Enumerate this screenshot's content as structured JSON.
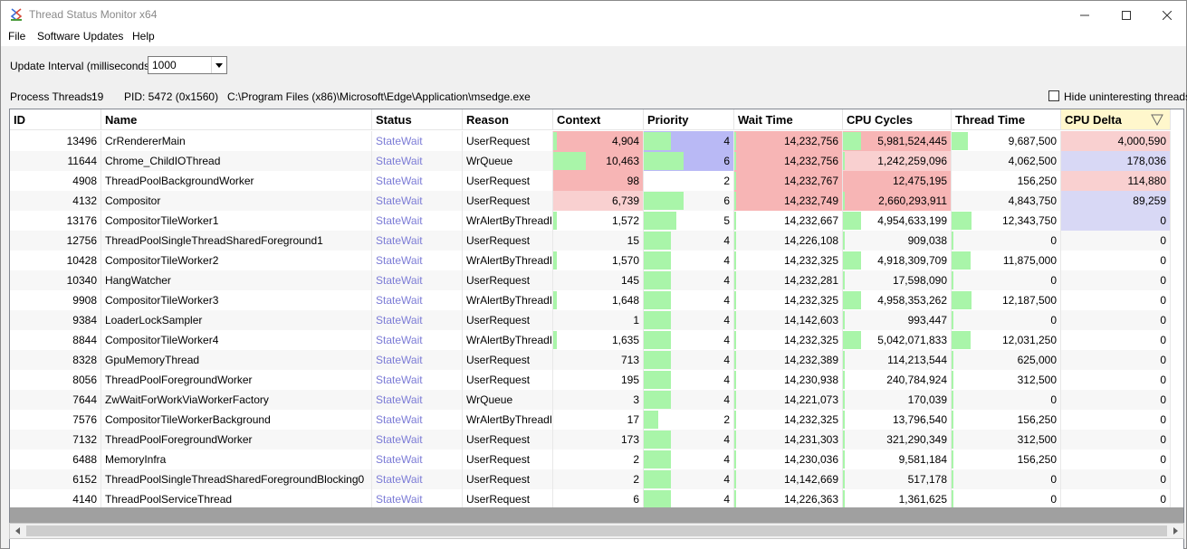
{
  "window": {
    "title": "Thread Status Monitor x64"
  },
  "menu": [
    "File",
    "Software Updates",
    "Help"
  ],
  "controls": {
    "interval_label": "Update Interval (milliseconds):",
    "interval_value": "1000",
    "hide_label": "Hide uninteresting threads",
    "hide_checked": false
  },
  "info": {
    "threads_label": "Process Threads:",
    "threads_value": "19",
    "pid": "PID: 5472 (0x1560)",
    "path": "C:\\Program Files (x86)\\Microsoft\\Edge\\Application\\msedge.exe"
  },
  "colors": {
    "green": "#a9f5a9",
    "red": "#f7b5b5",
    "red_light": "#f9d0d0",
    "blue": "#b9b9f5",
    "blue_light": "#d8d8f5",
    "link": "#7b7bd6"
  },
  "columns": [
    "ID",
    "Name",
    "Status",
    "Reason",
    "Context",
    "Priority",
    "Wait Time",
    "CPU Cycles",
    "Thread Time",
    "CPU Delta"
  ],
  "sorted_column": "CPU Delta",
  "rows": [
    {
      "id": "13496",
      "name": "CrRendererMain",
      "status": "StateWait",
      "reason": "UserRequest",
      "context": "4,904",
      "priority": "4",
      "wait": "14,232,756",
      "cycles": "5,981,524,445",
      "thread_time": "9,687,500",
      "delta": "4,000,590",
      "context_frac": 0.04,
      "priority_frac": 0.3,
      "wait_frac": 0.02,
      "cycles_frac": 0.17,
      "thread_frac": 0.15,
      "delta_frac": 0.0,
      "hl_context": "red",
      "hl_priority": "blue",
      "hl_wait": "red",
      "hl_cycles": "red",
      "hl_delta": "red_light"
    },
    {
      "id": "11644",
      "name": "Chrome_ChildIOThread",
      "status": "StateWait",
      "reason": "WrQueue",
      "context": "10,463",
      "priority": "6",
      "wait": "14,232,756",
      "cycles": "1,242,259,096",
      "thread_time": "4,062,500",
      "delta": "178,036",
      "context_frac": 0.36,
      "priority_frac": 0.44,
      "wait_frac": 0.02,
      "cycles_frac": 0.02,
      "thread_frac": 0.0,
      "delta_frac": 0.0,
      "hl_context": "red",
      "hl_priority": "blue",
      "hl_wait": "red",
      "hl_cycles": "red_light",
      "hl_delta": "blue_light"
    },
    {
      "id": "4908",
      "name": "ThreadPoolBackgroundWorker",
      "status": "StateWait",
      "reason": "UserRequest",
      "context": "98",
      "priority": "2",
      "wait": "14,232,767",
      "cycles": "12,475,195",
      "thread_time": "156,250",
      "delta": "114,880",
      "context_frac": 0.0,
      "priority_frac": 0.0,
      "wait_frac": 0.02,
      "cycles_frac": 0.0,
      "thread_frac": 0.0,
      "delta_frac": 0.0,
      "hl_context": "red",
      "hl_priority": "",
      "hl_wait": "red",
      "hl_cycles": "red",
      "hl_delta": "red_light"
    },
    {
      "id": "4132",
      "name": "Compositor",
      "status": "StateWait",
      "reason": "UserRequest",
      "context": "6,739",
      "priority": "6",
      "wait": "14,232,749",
      "cycles": "2,660,293,911",
      "thread_time": "4,843,750",
      "delta": "89,259",
      "context_frac": 0.0,
      "priority_frac": 0.44,
      "wait_frac": 0.02,
      "cycles_frac": 0.02,
      "thread_frac": 0.0,
      "delta_frac": 0.0,
      "hl_context": "red_light",
      "hl_priority": "",
      "hl_wait": "red",
      "hl_cycles": "red",
      "hl_delta": "blue_light"
    },
    {
      "id": "13176",
      "name": "CompositorTileWorker1",
      "status": "StateWait",
      "reason": "WrAlertByThreadId",
      "context": "1,572",
      "priority": "5",
      "wait": "14,232,667",
      "cycles": "4,954,633,199",
      "thread_time": "12,343,750",
      "delta": "0",
      "context_frac": 0.04,
      "priority_frac": 0.36,
      "wait_frac": 0.02,
      "cycles_frac": 0.17,
      "thread_frac": 0.18,
      "delta_frac": 0.0,
      "hl_context": "",
      "hl_priority": "",
      "hl_wait": "",
      "hl_cycles": "",
      "hl_delta": "blue_light"
    },
    {
      "id": "12756",
      "name": "ThreadPoolSingleThreadSharedForeground1",
      "status": "StateWait",
      "reason": "UserRequest",
      "context": "15",
      "priority": "4",
      "wait": "14,226,108",
      "cycles": "909,038",
      "thread_time": "0",
      "delta": "0",
      "context_frac": 0.0,
      "priority_frac": 0.3,
      "wait_frac": 0.02,
      "cycles_frac": 0.02,
      "thread_frac": 0.02,
      "delta_frac": 0.0,
      "hl_context": "",
      "hl_priority": "",
      "hl_wait": "",
      "hl_cycles": "",
      "hl_delta": ""
    },
    {
      "id": "10428",
      "name": "CompositorTileWorker2",
      "status": "StateWait",
      "reason": "WrAlertByThreadId",
      "context": "1,570",
      "priority": "4",
      "wait": "14,232,325",
      "cycles": "4,918,309,709",
      "thread_time": "11,875,000",
      "delta": "0",
      "context_frac": 0.04,
      "priority_frac": 0.3,
      "wait_frac": 0.02,
      "cycles_frac": 0.17,
      "thread_frac": 0.17,
      "delta_frac": 0.0,
      "hl_context": "",
      "hl_priority": "",
      "hl_wait": "",
      "hl_cycles": "",
      "hl_delta": ""
    },
    {
      "id": "10340",
      "name": "HangWatcher",
      "status": "StateWait",
      "reason": "UserRequest",
      "context": "145",
      "priority": "4",
      "wait": "14,232,281",
      "cycles": "17,598,090",
      "thread_time": "0",
      "delta": "0",
      "context_frac": 0.0,
      "priority_frac": 0.3,
      "wait_frac": 0.02,
      "cycles_frac": 0.02,
      "thread_frac": 0.02,
      "delta_frac": 0.0,
      "hl_context": "",
      "hl_priority": "",
      "hl_wait": "",
      "hl_cycles": "",
      "hl_delta": ""
    },
    {
      "id": "9908",
      "name": "CompositorTileWorker3",
      "status": "StateWait",
      "reason": "WrAlertByThreadId",
      "context": "1,648",
      "priority": "4",
      "wait": "14,232,325",
      "cycles": "4,958,353,262",
      "thread_time": "12,187,500",
      "delta": "0",
      "context_frac": 0.04,
      "priority_frac": 0.3,
      "wait_frac": 0.02,
      "cycles_frac": 0.17,
      "thread_frac": 0.18,
      "delta_frac": 0.0,
      "hl_context": "",
      "hl_priority": "",
      "hl_wait": "",
      "hl_cycles": "",
      "hl_delta": ""
    },
    {
      "id": "9384",
      "name": "LoaderLockSampler",
      "status": "StateWait",
      "reason": "UserRequest",
      "context": "1",
      "priority": "4",
      "wait": "14,142,603",
      "cycles": "993,447",
      "thread_time": "0",
      "delta": "0",
      "context_frac": 0.0,
      "priority_frac": 0.3,
      "wait_frac": 0.02,
      "cycles_frac": 0.02,
      "thread_frac": 0.02,
      "delta_frac": 0.0,
      "hl_context": "",
      "hl_priority": "",
      "hl_wait": "",
      "hl_cycles": "",
      "hl_delta": ""
    },
    {
      "id": "8844",
      "name": "CompositorTileWorker4",
      "status": "StateWait",
      "reason": "WrAlertByThreadId",
      "context": "1,635",
      "priority": "4",
      "wait": "14,232,325",
      "cycles": "5,042,071,833",
      "thread_time": "12,031,250",
      "delta": "0",
      "context_frac": 0.04,
      "priority_frac": 0.3,
      "wait_frac": 0.02,
      "cycles_frac": 0.17,
      "thread_frac": 0.17,
      "delta_frac": 0.0,
      "hl_context": "",
      "hl_priority": "",
      "hl_wait": "",
      "hl_cycles": "",
      "hl_delta": ""
    },
    {
      "id": "8328",
      "name": "GpuMemoryThread",
      "status": "StateWait",
      "reason": "UserRequest",
      "context": "713",
      "priority": "4",
      "wait": "14,232,389",
      "cycles": "114,213,544",
      "thread_time": "625,000",
      "delta": "0",
      "context_frac": 0.0,
      "priority_frac": 0.3,
      "wait_frac": 0.02,
      "cycles_frac": 0.02,
      "thread_frac": 0.02,
      "delta_frac": 0.0,
      "hl_context": "",
      "hl_priority": "",
      "hl_wait": "",
      "hl_cycles": "",
      "hl_delta": ""
    },
    {
      "id": "8056",
      "name": "ThreadPoolForegroundWorker",
      "status": "StateWait",
      "reason": "UserRequest",
      "context": "195",
      "priority": "4",
      "wait": "14,230,938",
      "cycles": "240,784,924",
      "thread_time": "312,500",
      "delta": "0",
      "context_frac": 0.0,
      "priority_frac": 0.3,
      "wait_frac": 0.02,
      "cycles_frac": 0.02,
      "thread_frac": 0.02,
      "delta_frac": 0.0,
      "hl_context": "",
      "hl_priority": "",
      "hl_wait": "",
      "hl_cycles": "",
      "hl_delta": ""
    },
    {
      "id": "7644",
      "name": "ZwWaitForWorkViaWorkerFactory",
      "status": "StateWait",
      "reason": "WrQueue",
      "context": "3",
      "priority": "4",
      "wait": "14,221,073",
      "cycles": "170,039",
      "thread_time": "0",
      "delta": "0",
      "context_frac": 0.0,
      "priority_frac": 0.3,
      "wait_frac": 0.02,
      "cycles_frac": 0.02,
      "thread_frac": 0.02,
      "delta_frac": 0.0,
      "hl_context": "",
      "hl_priority": "",
      "hl_wait": "",
      "hl_cycles": "",
      "hl_delta": ""
    },
    {
      "id": "7576",
      "name": "CompositorTileWorkerBackground",
      "status": "StateWait",
      "reason": "WrAlertByThreadId",
      "context": "17",
      "priority": "2",
      "wait": "14,232,325",
      "cycles": "13,796,540",
      "thread_time": "156,250",
      "delta": "0",
      "context_frac": 0.0,
      "priority_frac": 0.16,
      "wait_frac": 0.02,
      "cycles_frac": 0.02,
      "thread_frac": 0.02,
      "delta_frac": 0.0,
      "hl_context": "",
      "hl_priority": "",
      "hl_wait": "",
      "hl_cycles": "",
      "hl_delta": ""
    },
    {
      "id": "7132",
      "name": "ThreadPoolForegroundWorker",
      "status": "StateWait",
      "reason": "UserRequest",
      "context": "173",
      "priority": "4",
      "wait": "14,231,303",
      "cycles": "321,290,349",
      "thread_time": "312,500",
      "delta": "0",
      "context_frac": 0.0,
      "priority_frac": 0.3,
      "wait_frac": 0.02,
      "cycles_frac": 0.02,
      "thread_frac": 0.02,
      "delta_frac": 0.0,
      "hl_context": "",
      "hl_priority": "",
      "hl_wait": "",
      "hl_cycles": "",
      "hl_delta": ""
    },
    {
      "id": "6488",
      "name": "MemoryInfra",
      "status": "StateWait",
      "reason": "UserRequest",
      "context": "2",
      "priority": "4",
      "wait": "14,230,036",
      "cycles": "9,581,184",
      "thread_time": "156,250",
      "delta": "0",
      "context_frac": 0.0,
      "priority_frac": 0.3,
      "wait_frac": 0.02,
      "cycles_frac": 0.02,
      "thread_frac": 0.02,
      "delta_frac": 0.0,
      "hl_context": "",
      "hl_priority": "",
      "hl_wait": "",
      "hl_cycles": "",
      "hl_delta": ""
    },
    {
      "id": "6152",
      "name": "ThreadPoolSingleThreadSharedForegroundBlocking0",
      "status": "StateWait",
      "reason": "UserRequest",
      "context": "2",
      "priority": "4",
      "wait": "14,142,669",
      "cycles": "517,178",
      "thread_time": "0",
      "delta": "0",
      "context_frac": 0.0,
      "priority_frac": 0.3,
      "wait_frac": 0.02,
      "cycles_frac": 0.02,
      "thread_frac": 0.02,
      "delta_frac": 0.0,
      "hl_context": "",
      "hl_priority": "",
      "hl_wait": "",
      "hl_cycles": "",
      "hl_delta": ""
    },
    {
      "id": "4140",
      "name": "ThreadPoolServiceThread",
      "status": "StateWait",
      "reason": "UserRequest",
      "context": "6",
      "priority": "4",
      "wait": "14,226,363",
      "cycles": "1,361,625",
      "thread_time": "0",
      "delta": "0",
      "context_frac": 0.0,
      "priority_frac": 0.3,
      "wait_frac": 0.02,
      "cycles_frac": 0.02,
      "thread_frac": 0.02,
      "delta_frac": 0.0,
      "hl_context": "",
      "hl_priority": "",
      "hl_wait": "",
      "hl_cycles": "",
      "hl_delta": ""
    }
  ]
}
